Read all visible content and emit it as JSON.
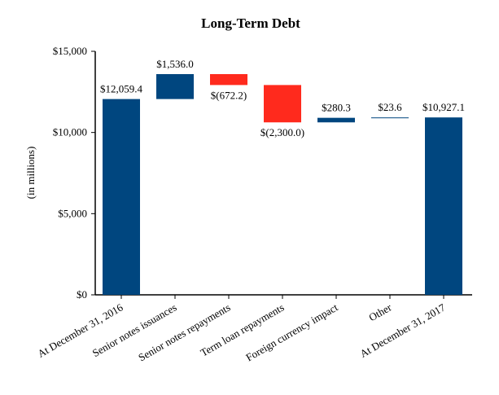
{
  "chart_data": {
    "type": "waterfall",
    "title": "Long-Term Debt",
    "ylabel": "(in millions)",
    "xlabel": "",
    "ylim": [
      0,
      15000
    ],
    "yticks": [
      0,
      5000,
      10000,
      15000
    ],
    "ytick_labels": [
      "$0",
      "$5,000",
      "$10,000",
      "$15,000"
    ],
    "grid": false,
    "categories": [
      "At December 31, 2016",
      "Senior notes issuances",
      "Senior notes repayments",
      "Term loan repayments",
      "Foreign currency impact",
      "Other",
      "At December 31, 2017"
    ],
    "values": [
      12059.4,
      1536.0,
      -672.2,
      -2300.0,
      280.3,
      23.6,
      10927.1
    ],
    "kinds": [
      "total",
      "delta",
      "delta",
      "delta",
      "delta",
      "delta",
      "total"
    ],
    "data_labels": [
      "$12,059.4",
      "$1,536.0",
      "$(672.2)",
      "$(2,300.0)",
      "$280.3",
      "$23.6",
      "$10,927.1"
    ],
    "colors": {
      "increase": "#00467f",
      "decrease": "#ff2a1d",
      "total": "#00467f"
    }
  }
}
